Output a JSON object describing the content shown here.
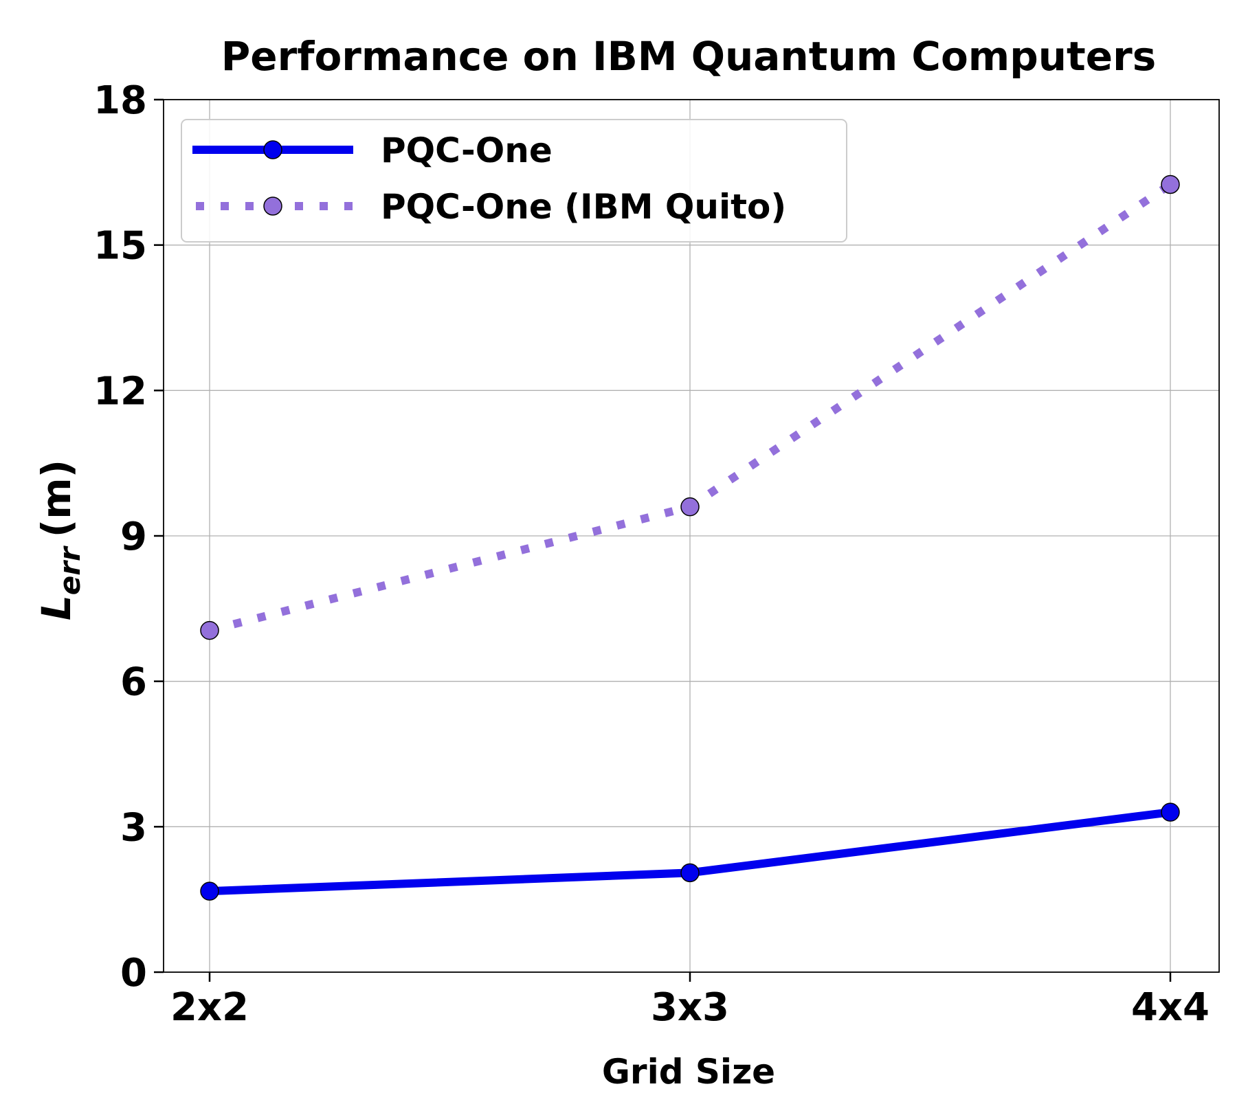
{
  "chart_data": {
    "type": "line",
    "title": "Performance on IBM Quantum Computers",
    "xlabel": "Grid Size",
    "ylabel_main": "L",
    "ylabel_sub": "err",
    "ylabel_unit": "(m)",
    "categories": [
      "2x2",
      "3x3",
      "4x4"
    ],
    "ylim": [
      0,
      18
    ],
    "yticks": [
      0,
      3,
      6,
      9,
      12,
      15,
      18
    ],
    "grid": true,
    "legend_position": "top-left",
    "series": [
      {
        "name": "PQC-One",
        "values": [
          1.67,
          2.05,
          3.3
        ],
        "color": "#0000ee",
        "line_style": "solid"
      },
      {
        "name": "PQC-One (IBM Quito)",
        "values": [
          7.05,
          9.6,
          16.25
        ],
        "color": "#9370db",
        "line_style": "dotted"
      }
    ]
  }
}
